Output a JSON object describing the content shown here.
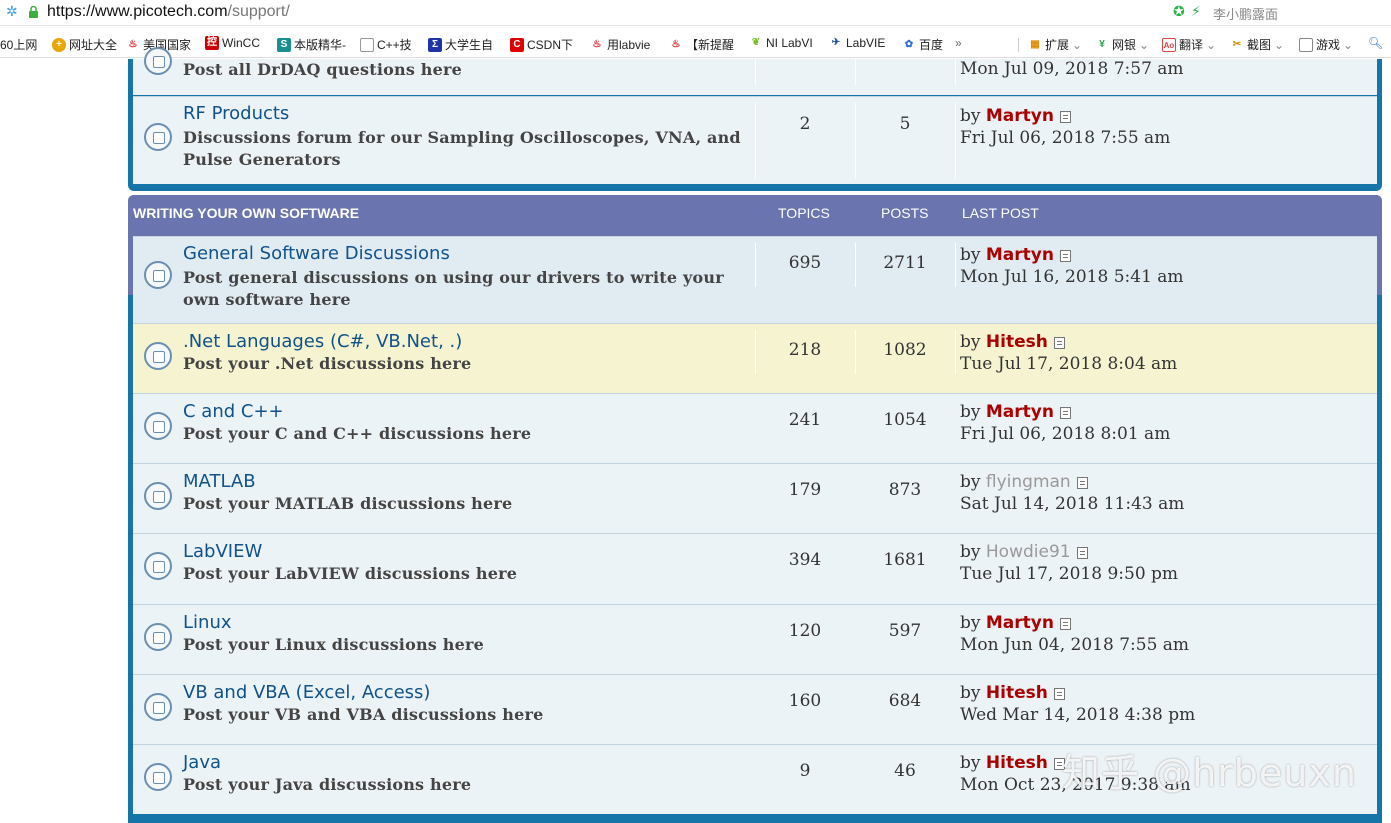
{
  "browser": {
    "url_host": "https://www.picotech.com",
    "url_path": "/support/",
    "user_name": "李小鹏露面"
  },
  "bookmarks": [
    {
      "label": "60上网",
      "icon": ""
    },
    {
      "label": "网址大全",
      "icon": "globe-icon"
    },
    {
      "label": "美国国家",
      "icon": "fire-icon"
    },
    {
      "label": "WinCC",
      "icon": "control-icon"
    },
    {
      "label": "本版精华-",
      "icon": "s-icon"
    },
    {
      "label": "C++技",
      "icon": "page-icon"
    },
    {
      "label": "大学生自",
      "icon": "sigma-icon"
    },
    {
      "label": "CSDN下",
      "icon": "csdn-icon"
    },
    {
      "label": "用labvie",
      "icon": "fire-icon"
    },
    {
      "label": "【新提醒",
      "icon": "fire-icon"
    },
    {
      "label": "NI LabVI",
      "icon": "leaf-icon"
    },
    {
      "label": "LabVIE",
      "icon": "labview-icon"
    },
    {
      "label": "百度",
      "icon": "paw-icon"
    },
    {
      "label": "»",
      "icon": ""
    }
  ],
  "toolbar": [
    {
      "label": "扩展",
      "icon": "grid-icon"
    },
    {
      "label": "网银",
      "icon": "bank-icon"
    },
    {
      "label": "翻译",
      "icon": "translate-icon"
    },
    {
      "label": "截图",
      "icon": "scissors-icon"
    },
    {
      "label": "游戏",
      "icon": "game-icon"
    }
  ],
  "section_top": {
    "rows": [
      {
        "title": "",
        "desc": "Post all DrDAQ questions here",
        "topics": "",
        "posts": "",
        "by": "",
        "author": "",
        "date": "Mon Jul 09, 2018 7:57 am"
      },
      {
        "title": "RF Products",
        "desc": "Discussions forum for our Sampling Oscilloscopes, VNA, and Pulse Generators",
        "topics": "2",
        "posts": "5",
        "by": "by ",
        "author": "Martyn",
        "date": "Fri Jul 06, 2018 7:55 am"
      }
    ]
  },
  "section": {
    "title": "WRITING YOUR OWN SOFTWARE",
    "col_topics": "TOPICS",
    "col_posts": "POSTS",
    "col_last": "LAST POST",
    "rows": [
      {
        "title": "General Software Discussions",
        "desc": "Post general discussions on using our drivers to write your own software here",
        "topics": "695",
        "posts": "2711",
        "by": "by ",
        "author": "Martyn",
        "date": "Mon Jul 16, 2018 5:41 am"
      },
      {
        "title": ".Net Languages (C#, VB.Net, .)",
        "desc": "Post your .Net discussions here",
        "topics": "218",
        "posts": "1082",
        "by": "by ",
        "author": "Hitesh",
        "date": "Tue Jul 17, 2018 8:04 am"
      },
      {
        "title": "C and C++",
        "desc": "Post your C and C++ discussions here",
        "topics": "241",
        "posts": "1054",
        "by": "by ",
        "author": "Martyn",
        "date": "Fri Jul 06, 2018 8:01 am"
      },
      {
        "title": "MATLAB",
        "desc": "Post your MATLAB discussions here",
        "topics": "179",
        "posts": "873",
        "by": "by ",
        "author": "flyingman",
        "date": "Sat Jul 14, 2018 11:43 am"
      },
      {
        "title": "LabVIEW",
        "desc": "Post your LabVIEW discussions here",
        "topics": "394",
        "posts": "1681",
        "by": "by ",
        "author": "Howdie91",
        "date": "Tue Jul 17, 2018 9:50 pm"
      },
      {
        "title": "Linux",
        "desc": "Post your Linux discussions here",
        "topics": "120",
        "posts": "597",
        "by": "by ",
        "author": "Martyn",
        "date": "Mon Jun 04, 2018 7:55 am"
      },
      {
        "title": "VB and VBA (Excel, Access)",
        "desc": "Post your VB and VBA discussions here",
        "topics": "160",
        "posts": "684",
        "by": "by ",
        "author": "Hitesh",
        "date": "Wed Mar 14, 2018 4:38 pm"
      },
      {
        "title": "Java",
        "desc": "Post your Java discussions here",
        "topics": "9",
        "posts": "46",
        "by": "by ",
        "author": "Hitesh",
        "date": "Mon Oct 23, 2017 9:38 am"
      }
    ]
  },
  "watermark": "知乎 @hrbeuxn",
  "colors": {
    "frame": "#1574a8",
    "header_band": "#6a74ae",
    "row_bg": "#ecf3f7",
    "row_highlight": "#f6f4d0",
    "title_link": "#105289",
    "author_red": "#aa0000"
  }
}
